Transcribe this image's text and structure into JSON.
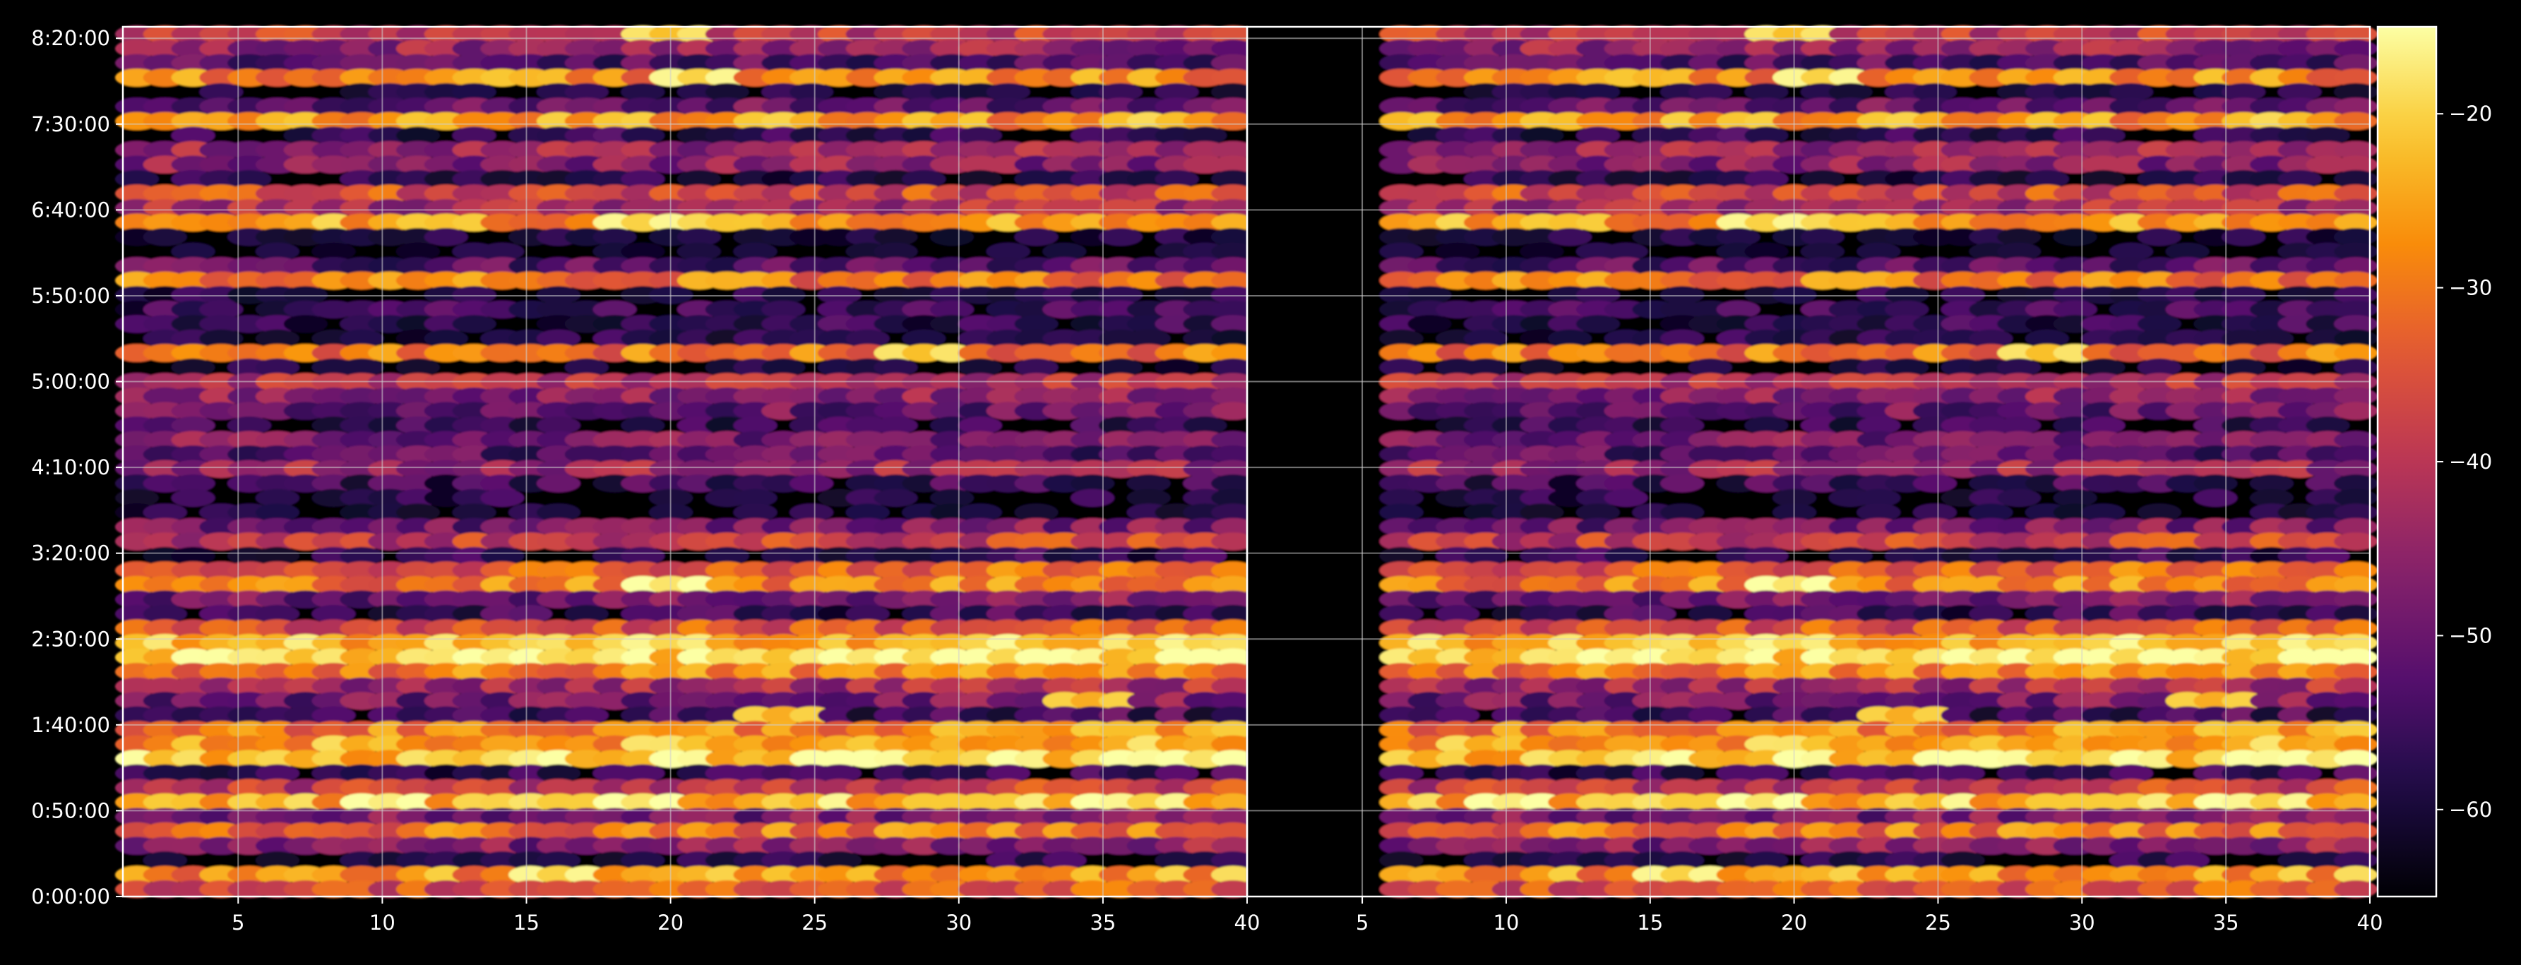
{
  "chart_data": {
    "type": "heatmap",
    "title": "",
    "xlabel": "",
    "ylabel": "",
    "colormap": "inferno",
    "background": "#000000",
    "grid": true,
    "panels": [
      {
        "name": "left",
        "xlim": [
          1,
          40
        ],
        "x_ticks": [
          5,
          10,
          15,
          20,
          25,
          30,
          35,
          40
        ],
        "x_tick_labels": [
          "5",
          "10",
          "15",
          "20",
          "25",
          "30",
          "35",
          "40"
        ],
        "blank_left_columns": 0
      },
      {
        "name": "right",
        "xlim": [
          1,
          40
        ],
        "x_ticks": [
          5,
          10,
          15,
          20,
          25,
          30,
          35,
          40
        ],
        "x_tick_labels": [
          "5",
          "10",
          "15",
          "20",
          "25",
          "30",
          "35",
          "40"
        ],
        "blank_left_columns": 5
      }
    ],
    "y_ticks_seconds": [
      0,
      3000,
      6000,
      9000,
      12000,
      15000,
      18000,
      21000,
      24000,
      27000,
      30000
    ],
    "y_tick_labels": [
      "0:00:00",
      "0:50:00",
      "1:40:00",
      "2:30:00",
      "3:20:00",
      "4:10:00",
      "5:00:00",
      "5:50:00",
      "6:40:00",
      "7:30:00",
      "8:20:00"
    ],
    "ylim_seconds": [
      0,
      30400
    ],
    "colorbar": {
      "range": [
        -65,
        -15
      ],
      "ticks": [
        -60,
        -50,
        -40,
        -30,
        -20
      ],
      "tick_labels": [
        "−60",
        "−50",
        "−40",
        "−30",
        "−20"
      ]
    },
    "row_profile": {
      "description": "Approximate mean intensity (colorbar units) per time row, top to bottom, 60 rows",
      "values": [
        -38,
        -45,
        -52,
        -28,
        -62,
        -50,
        -26,
        -58,
        -44,
        -46,
        -60,
        -36,
        -42,
        -26,
        -62,
        -64,
        -52,
        -30,
        -60,
        -56,
        -58,
        -60,
        -30,
        -62,
        -40,
        -46,
        -50,
        -58,
        -48,
        -52,
        -44,
        -56,
        -60,
        -62,
        -50,
        -40,
        -60,
        -34,
        -30,
        -50,
        -58,
        -36,
        -24,
        -20,
        -30,
        -44,
        -50,
        -58,
        -30,
        -26,
        -22,
        -60,
        -40,
        -24,
        -50,
        -32,
        -48,
        -62,
        -28,
        -36
      ],
      "highlights": [
        {
          "row": 0,
          "x": 20,
          "value": -22
        },
        {
          "row": 3,
          "x": 21,
          "value": -20
        },
        {
          "row": 6,
          "x": 37,
          "value": -26
        },
        {
          "row": 13,
          "x": 19,
          "value": -20
        },
        {
          "row": 22,
          "x": 29,
          "value": -22
        },
        {
          "row": 38,
          "x": 20,
          "value": -18
        },
        {
          "row": 43,
          "x": 14,
          "value": -17
        },
        {
          "row": 46,
          "x": 35,
          "value": -24
        },
        {
          "row": 47,
          "x": 24,
          "value": -24
        },
        {
          "row": 50,
          "x": 26,
          "value": -15
        },
        {
          "row": 50,
          "x": 37,
          "value": -18
        },
        {
          "row": 53,
          "x": 10,
          "value": -17
        },
        {
          "row": 53,
          "x": 19,
          "value": -18
        },
        {
          "row": 53,
          "x": 37,
          "value": -20
        },
        {
          "row": 58,
          "x": 16,
          "value": -20
        }
      ]
    }
  }
}
